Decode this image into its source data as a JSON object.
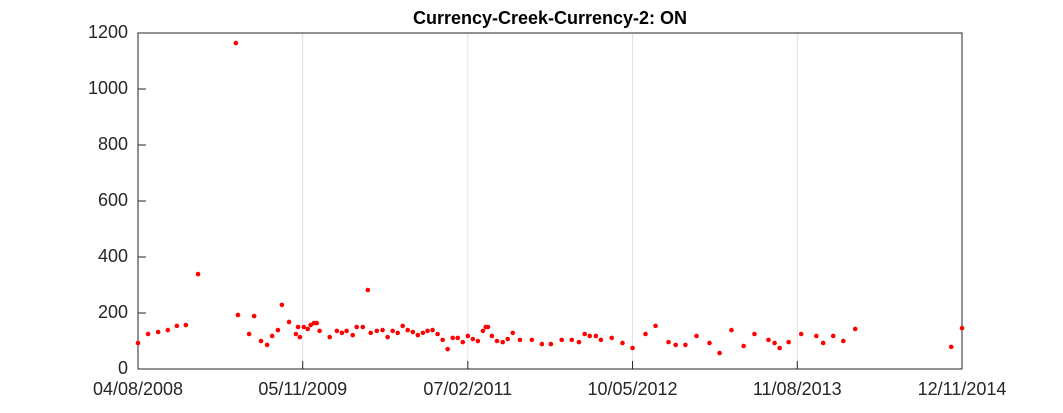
{
  "chart_data": {
    "type": "scatter",
    "title": "Currency-Creek-Currency-2: ON",
    "color": "#ff0000",
    "grid": "x",
    "xlim": [
      "2008-08-04",
      "2014-11-12"
    ],
    "xticks": [
      {
        "value": "2008-08-04",
        "label": "04/08/2008"
      },
      {
        "value": "2009-11-05",
        "label": "05/11/2009"
      },
      {
        "value": "2011-02-07",
        "label": "07/02/2011"
      },
      {
        "value": "2012-05-10",
        "label": "10/05/2012"
      },
      {
        "value": "2013-08-11",
        "label": "11/08/2013"
      },
      {
        "value": "2014-11-12",
        "label": "12/11/2014"
      }
    ],
    "ylim": [
      0,
      1200
    ],
    "yticks": [
      0,
      200,
      400,
      600,
      800,
      1000,
      1200
    ],
    "x": [
      "2008-08-04",
      "2008-09-01",
      "2008-09-29",
      "2008-10-26",
      "2008-11-20",
      "2008-12-15",
      "2009-01-18",
      "2009-05-03",
      "2009-05-09",
      "2009-06-09",
      "2009-06-23",
      "2009-07-12",
      "2009-07-29",
      "2009-08-12",
      "2009-08-28",
      "2009-09-08",
      "2009-09-28",
      "2009-10-17",
      "2009-10-23",
      "2009-10-28",
      "2009-11-08",
      "2009-11-19",
      "2009-11-27",
      "2009-12-06",
      "2009-12-14",
      "2009-12-22",
      "2010-01-19",
      "2010-02-08",
      "2010-02-22",
      "2010-03-07",
      "2010-03-24",
      "2010-04-04",
      "2010-04-21",
      "2010-05-05",
      "2010-05-13",
      "2010-05-30",
      "2010-06-15",
      "2010-06-29",
      "2010-07-13",
      "2010-07-27",
      "2010-08-10",
      "2010-08-24",
      "2010-09-07",
      "2010-09-21",
      "2010-10-05",
      "2010-10-18",
      "2010-11-01",
      "2010-11-15",
      "2010-11-29",
      "2010-12-13",
      "2010-12-27",
      "2011-01-10",
      "2011-01-24",
      "2011-02-07",
      "2011-02-21",
      "2011-03-07",
      "2011-03-21",
      "2011-03-29",
      "2011-04-04",
      "2011-04-15",
      "2011-04-29",
      "2011-05-15",
      "2011-05-29",
      "2011-06-12",
      "2011-07-02",
      "2011-08-04",
      "2011-09-01",
      "2011-09-26",
      "2011-10-26",
      "2011-11-23",
      "2011-12-13",
      "2011-12-29",
      "2012-01-12",
      "2012-01-29",
      "2012-02-12",
      "2012-03-13",
      "2012-04-12",
      "2012-05-10",
      "2012-06-15",
      "2012-07-13",
      "2012-08-18",
      "2012-09-07",
      "2012-10-04",
      "2012-11-04",
      "2012-12-10",
      "2013-01-07",
      "2013-02-09",
      "2013-03-15",
      "2013-04-14",
      "2013-05-23",
      "2013-06-09",
      "2013-06-23",
      "2013-07-18",
      "2013-08-22",
      "2013-10-03",
      "2013-10-22",
      "2013-11-19",
      "2013-12-17",
      "2014-01-19",
      "2014-10-13",
      "2014-11-12"
    ],
    "values": [
      93,
      125,
      132,
      139,
      154,
      157,
      339,
      1164,
      193,
      125,
      189,
      100,
      86,
      118,
      139,
      229,
      168,
      125,
      150,
      114,
      150,
      143,
      157,
      164,
      164,
      136,
      114,
      136,
      129,
      136,
      121,
      150,
      150,
      282,
      129,
      136,
      139,
      114,
      136,
      129,
      154,
      139,
      132,
      121,
      129,
      136,
      139,
      125,
      104,
      71,
      111,
      111,
      96,
      118,
      107,
      100,
      136,
      150,
      150,
      118,
      100,
      96,
      107,
      129,
      104,
      104,
      89,
      89,
      104,
      104,
      96,
      125,
      118,
      118,
      104,
      111,
      93,
      75,
      125,
      154,
      96,
      86,
      86,
      118,
      93,
      57,
      139,
      82,
      125,
      104,
      93,
      75,
      96,
      125,
      118,
      93,
      118,
      100,
      143,
      79,
      146
    ]
  }
}
